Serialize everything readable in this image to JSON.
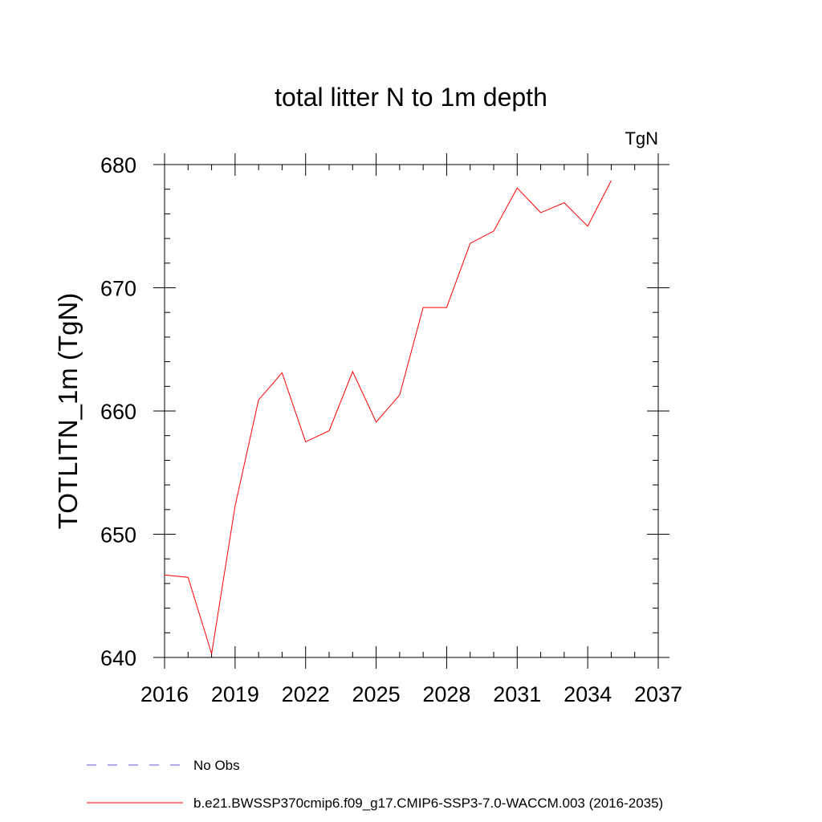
{
  "chart_data": {
    "type": "line",
    "title": "total litter N to 1m depth",
    "units_label": "TgN",
    "xlabel": "",
    "ylabel": "TOTLITN_1m  (TgN)",
    "xlim": [
      2016,
      2037
    ],
    "ylim": [
      640,
      680
    ],
    "x_ticks": [
      2016,
      2019,
      2022,
      2025,
      2028,
      2031,
      2034,
      2037
    ],
    "y_ticks": [
      640,
      650,
      660,
      670,
      680
    ],
    "x_tick_labels": [
      "2016",
      "2019",
      "2022",
      "2025",
      "2028",
      "2031",
      "2034",
      "2037"
    ],
    "y_tick_labels": [
      "640",
      "650",
      "660",
      "670",
      "680"
    ],
    "grid": false,
    "legend_position": "bottom",
    "series": [
      {
        "name": "b.e21.BWSSP370cmip6.f09_g17.CMIP6-SSP3-7.0-WACCM.003 (2016-2035)",
        "color": "#ff0000",
        "style": "solid",
        "x": [
          2016,
          2017,
          2018,
          2019,
          2020,
          2021,
          2022,
          2023,
          2024,
          2025,
          2026,
          2027,
          2028,
          2029,
          2030,
          2031,
          2032,
          2033,
          2034,
          2035
        ],
        "values": [
          646.7,
          646.5,
          640.3,
          652.3,
          660.9,
          663.1,
          657.5,
          658.4,
          663.2,
          659.1,
          661.3,
          668.4,
          668.4,
          673.6,
          674.6,
          678.1,
          676.1,
          676.9,
          675.0,
          678.7
        ]
      }
    ],
    "legend": [
      {
        "label": "No Obs",
        "color": "#6a5acd",
        "style": "dashed"
      },
      {
        "label": "b.e21.BWSSP370cmip6.f09_g17.CMIP6-SSP3-7.0-WACCM.003 (2016-2035)",
        "color": "#ff0000",
        "style": "solid"
      }
    ]
  }
}
